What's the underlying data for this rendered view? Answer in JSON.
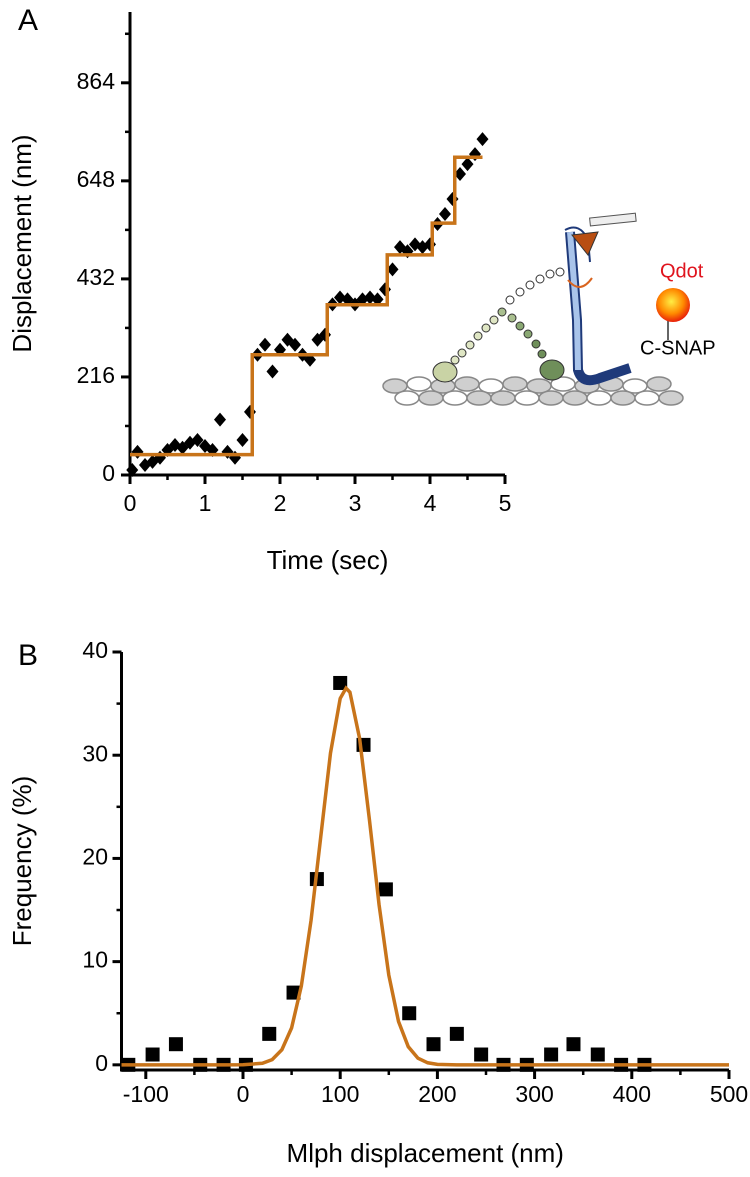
{
  "chart_data": [
    {
      "type": "scatter",
      "panel_label": "A",
      "x_label": "Time (sec)",
      "y_label": "Displacement (nm)",
      "xlim": [
        0,
        5
      ],
      "ylim": [
        0,
        1020
      ],
      "xticks": [
        0,
        1,
        2,
        3,
        4,
        5
      ],
      "yticks": [
        0,
        216,
        432,
        648,
        864
      ],
      "xminor_ticks": [
        0.5,
        1.5,
        2.5,
        3.5,
        4.5
      ],
      "yminor_ticks": [
        108,
        324,
        540,
        756,
        972
      ],
      "annotations": [
        "Qdot",
        "C-SNAP"
      ],
      "series": [
        {
          "mode": "markers",
          "marker": "diamond",
          "color": "#000000",
          "x": [
            0.03,
            0.1,
            0.2,
            0.3,
            0.4,
            0.5,
            0.6,
            0.7,
            0.8,
            0.9,
            1.0,
            1.1,
            1.2,
            1.3,
            1.4,
            1.5,
            1.6,
            1.7,
            1.8,
            1.9,
            2.0,
            2.1,
            2.2,
            2.3,
            2.4,
            2.5,
            2.6,
            2.7,
            2.8,
            2.9,
            3.0,
            3.1,
            3.2,
            3.3,
            3.4,
            3.5,
            3.6,
            3.7,
            3.8,
            3.9,
            4.0,
            4.1,
            4.2,
            4.3,
            4.4,
            4.5,
            4.6,
            4.7
          ],
          "values": [
            11,
            51,
            22,
            29,
            38,
            55,
            66,
            60,
            71,
            77,
            64,
            55,
            122,
            51,
            38,
            77,
            139,
            265,
            287,
            228,
            276,
            298,
            287,
            265,
            254,
            298,
            309,
            376,
            391,
            387,
            376,
            387,
            391,
            387,
            409,
            453,
            502,
            493,
            508,
            502,
            508,
            553,
            575,
            608,
            663,
            685,
            707,
            740
          ]
        },
        {
          "mode": "lines",
          "color": "#c8741a",
          "x": [
            0,
            1.63,
            1.63,
            2.63,
            2.63,
            3.43,
            3.43,
            4.03,
            4.03,
            4.33,
            4.33,
            4.7
          ],
          "values": [
            45,
            45,
            265,
            265,
            375,
            375,
            485,
            485,
            555,
            555,
            700,
            700
          ]
        }
      ]
    },
    {
      "type": "scatter",
      "panel_label": "B",
      "x_label": "Mlph displacement (nm)",
      "y_label": "Frequency (%)",
      "xlim": [
        -125,
        500
      ],
      "ylim": [
        -0.5,
        40
      ],
      "xticks": [
        -100,
        0,
        100,
        200,
        300,
        400,
        500
      ],
      "yticks": [
        0,
        10,
        20,
        30,
        40
      ],
      "xminor_ticks": [
        -50,
        50,
        150,
        250,
        350,
        450
      ],
      "yminor_ticks": [
        5,
        15,
        25,
        35
      ],
      "series": [
        {
          "mode": "markers",
          "marker": "square",
          "color": "#000000",
          "x": [
            -118,
            -93,
            -69,
            -44,
            -20,
            3,
            27,
            52,
            76,
            100,
            124,
            147,
            171,
            196,
            220,
            245,
            268,
            292,
            317,
            340,
            365,
            389,
            413
          ],
          "values": [
            0,
            1,
            2,
            0,
            0,
            0,
            3,
            7,
            18,
            37,
            31,
            17,
            5,
            2,
            3,
            1,
            0,
            0,
            1,
            2,
            1,
            0,
            0
          ]
        },
        {
          "mode": "lines",
          "color": "#c8741a",
          "x": [
            -125,
            -20,
            0,
            20,
            30,
            40,
            50,
            60,
            70,
            80,
            90,
            100,
            106,
            110,
            120,
            130,
            140,
            150,
            160,
            170,
            180,
            190,
            200,
            220,
            500
          ],
          "values": [
            0,
            0,
            0.01,
            0.15,
            0.51,
            1.46,
            3.58,
            7.63,
            13.99,
            22.1,
            30.2,
            35.5,
            36.5,
            36.1,
            31.6,
            23.8,
            15.5,
            8.7,
            4.2,
            1.76,
            0.64,
            0.2,
            0.05,
            0,
            0
          ]
        }
      ]
    }
  ]
}
